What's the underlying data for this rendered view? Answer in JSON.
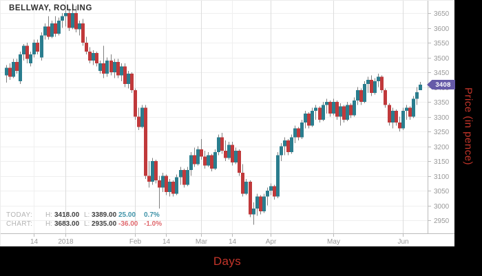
{
  "title": "BELLWAY, ROLLING",
  "axis_titles": {
    "x": "Days",
    "y": "Price (in pence)"
  },
  "price_badge": {
    "value": "3408",
    "color": "#655aa8"
  },
  "stats": {
    "rows": [
      {
        "label": "TODAY:",
        "h_label": "H:",
        "high": "3418.00",
        "l_label": "L:",
        "low": "3389.00",
        "change": "25.00",
        "change_pct": "0.7%",
        "direction": "up"
      },
      {
        "label": "CHART:",
        "h_label": "H:",
        "high": "3683.00",
        "l_label": "L:",
        "low": "2935.00",
        "change": "-36.00",
        "change_pct": "-1.0%",
        "direction": "down"
      }
    ]
  },
  "colors": {
    "up": "#2a7d8e",
    "down": "#c0393b",
    "wick": "#7f7f7f",
    "grid": "#efefef",
    "grid_month": "#dcdcdc",
    "axis": "#bbbbbb",
    "tick_label": "#999999",
    "accent_red": "#c5352a",
    "badge": "#655aa8"
  },
  "chart_data": {
    "type": "candlestick",
    "title": "BELLWAY, ROLLING",
    "xlabel": "Days",
    "ylabel": "Price (in pence)",
    "ylim": [
      2935,
      3683
    ],
    "last_price": 3408,
    "chart_high": 3683,
    "chart_low": 2935,
    "price_ticks": [
      3650,
      3600,
      3550,
      3500,
      3450,
      3400,
      3350,
      3300,
      3250,
      3200,
      3150,
      3100,
      3050,
      3000,
      2950
    ],
    "x_ticks": [
      {
        "label": "14",
        "i": 8,
        "month": false
      },
      {
        "label": "2018",
        "i": 17,
        "month": true
      },
      {
        "label": "Feb",
        "i": 37,
        "month": true
      },
      {
        "label": "14",
        "i": 46,
        "month": false
      },
      {
        "label": "Mar",
        "i": 56,
        "month": true
      },
      {
        "label": "14",
        "i": 65,
        "month": false
      },
      {
        "label": "Apr",
        "i": 76,
        "month": true
      },
      {
        "label": "May",
        "i": 94,
        "month": true
      },
      {
        "label": "Jun",
        "i": 114,
        "month": true
      }
    ],
    "ohlc_format": [
      "open",
      "high",
      "low",
      "close"
    ],
    "candles": [
      [
        3440,
        3475,
        3415,
        3465
      ],
      [
        3465,
        3480,
        3425,
        3435
      ],
      [
        3435,
        3495,
        3430,
        3485
      ],
      [
        3485,
        3495,
        3445,
        3455
      ],
      [
        3420,
        3520,
        3410,
        3510
      ],
      [
        3510,
        3545,
        3490,
        3540
      ],
      [
        3540,
        3550,
        3480,
        3495
      ],
      [
        3480,
        3520,
        3470,
        3510
      ],
      [
        3510,
        3560,
        3500,
        3550
      ],
      [
        3550,
        3560,
        3510,
        3520
      ],
      [
        3500,
        3585,
        3490,
        3575
      ],
      [
        3575,
        3615,
        3560,
        3605
      ],
      [
        3605,
        3640,
        3560,
        3570
      ],
      [
        3570,
        3625,
        3565,
        3615
      ],
      [
        3615,
        3640,
        3570,
        3580
      ],
      [
        3580,
        3635,
        3575,
        3625
      ],
      [
        3625,
        3650,
        3600,
        3640
      ],
      [
        3640,
        3660,
        3605,
        3650
      ],
      [
        3650,
        3665,
        3590,
        3600
      ],
      [
        3600,
        3683,
        3595,
        3650
      ],
      [
        3650,
        3675,
        3585,
        3595
      ],
      [
        3595,
        3625,
        3575,
        3615
      ],
      [
        3615,
        3630,
        3540,
        3550
      ],
      [
        3550,
        3570,
        3510,
        3520
      ],
      [
        3520,
        3535,
        3480,
        3490
      ],
      [
        3490,
        3525,
        3475,
        3515
      ],
      [
        3515,
        3520,
        3470,
        3480
      ],
      [
        3455,
        3490,
        3445,
        3480
      ],
      [
        3480,
        3540,
        3430,
        3445
      ],
      [
        3445,
        3500,
        3435,
        3490
      ],
      [
        3490,
        3510,
        3440,
        3450
      ],
      [
        3450,
        3495,
        3430,
        3485
      ],
      [
        3485,
        3495,
        3430,
        3440
      ],
      [
        3440,
        3480,
        3420,
        3470
      ],
      [
        3470,
        3480,
        3400,
        3410
      ],
      [
        3410,
        3455,
        3395,
        3445
      ],
      [
        3445,
        3450,
        3380,
        3390
      ],
      [
        3390,
        3395,
        3290,
        3300
      ],
      [
        3300,
        3330,
        3255,
        3265
      ],
      [
        3265,
        3340,
        3260,
        3330
      ],
      [
        3330,
        3340,
        3090,
        3100
      ],
      [
        3100,
        3150,
        3060,
        3080
      ],
      [
        3080,
        3160,
        3070,
        3150
      ],
      [
        3150,
        3155,
        3075,
        3085
      ],
      [
        3085,
        3100,
        2990,
        3060
      ],
      [
        3060,
        3110,
        3045,
        3100
      ],
      [
        3100,
        3105,
        3035,
        3045
      ],
      [
        3045,
        3090,
        3030,
        3080
      ],
      [
        3080,
        3085,
        3030,
        3040
      ],
      [
        3040,
        3105,
        3035,
        3095
      ],
      [
        3095,
        3130,
        3070,
        3120
      ],
      [
        3120,
        3125,
        3060,
        3070
      ],
      [
        3070,
        3130,
        3065,
        3120
      ],
      [
        3120,
        3180,
        3100,
        3170
      ],
      [
        3170,
        3195,
        3130,
        3140
      ],
      [
        3140,
        3200,
        3135,
        3190
      ],
      [
        3190,
        3225,
        3155,
        3165
      ],
      [
        3165,
        3185,
        3125,
        3135
      ],
      [
        3135,
        3180,
        3130,
        3170
      ],
      [
        3170,
        3175,
        3115,
        3125
      ],
      [
        3125,
        3190,
        3120,
        3180
      ],
      [
        3180,
        3240,
        3170,
        3230
      ],
      [
        3230,
        3245,
        3175,
        3185
      ],
      [
        3185,
        3220,
        3150,
        3160
      ],
      [
        3160,
        3215,
        3155,
        3205
      ],
      [
        3205,
        3215,
        3135,
        3145
      ],
      [
        3145,
        3195,
        3140,
        3185
      ],
      [
        3185,
        3190,
        3100,
        3110
      ],
      [
        3110,
        3140,
        3030,
        3040
      ],
      [
        3040,
        3090,
        3035,
        3080
      ],
      [
        3080,
        3085,
        2960,
        2970
      ],
      [
        2970,
        3010,
        2935,
        2990
      ],
      [
        2990,
        3040,
        2965,
        3030
      ],
      [
        3030,
        3035,
        2970,
        2980
      ],
      [
        2980,
        3040,
        2975,
        3030
      ],
      [
        3030,
        3060,
        3000,
        3050
      ],
      [
        3050,
        3075,
        3035,
        3065
      ],
      [
        3065,
        3070,
        3020,
        3030
      ],
      [
        3030,
        3180,
        3025,
        3170
      ],
      [
        3170,
        3210,
        3150,
        3200
      ],
      [
        3200,
        3230,
        3170,
        3220
      ],
      [
        3220,
        3225,
        3170,
        3180
      ],
      [
        3180,
        3240,
        3175,
        3230
      ],
      [
        3230,
        3270,
        3210,
        3260
      ],
      [
        3260,
        3265,
        3220,
        3230
      ],
      [
        3230,
        3290,
        3225,
        3280
      ],
      [
        3280,
        3320,
        3260,
        3310
      ],
      [
        3310,
        3315,
        3260,
        3270
      ],
      [
        3270,
        3330,
        3265,
        3320
      ],
      [
        3320,
        3340,
        3290,
        3330
      ],
      [
        3330,
        3335,
        3280,
        3290
      ],
      [
        3290,
        3350,
        3285,
        3340
      ],
      [
        3340,
        3360,
        3310,
        3350
      ],
      [
        3350,
        3355,
        3300,
        3310
      ],
      [
        3310,
        3360,
        3305,
        3350
      ],
      [
        3350,
        3355,
        3290,
        3300
      ],
      [
        3300,
        3345,
        3270,
        3335
      ],
      [
        3335,
        3340,
        3280,
        3290
      ],
      [
        3290,
        3350,
        3285,
        3340
      ],
      [
        3340,
        3345,
        3295,
        3305
      ],
      [
        3305,
        3365,
        3300,
        3355
      ],
      [
        3355,
        3400,
        3340,
        3390
      ],
      [
        3390,
        3395,
        3340,
        3350
      ],
      [
        3350,
        3420,
        3345,
        3410
      ],
      [
        3410,
        3435,
        3380,
        3425
      ],
      [
        3425,
        3440,
        3370,
        3380
      ],
      [
        3380,
        3430,
        3375,
        3420
      ],
      [
        3420,
        3445,
        3400,
        3435
      ],
      [
        3435,
        3440,
        3380,
        3390
      ],
      [
        3390,
        3395,
        3330,
        3340
      ],
      [
        3340,
        3345,
        3270,
        3280
      ],
      [
        3280,
        3330,
        3260,
        3320
      ],
      [
        3320,
        3325,
        3270,
        3280
      ],
      [
        3280,
        3300,
        3250,
        3260
      ],
      [
        3260,
        3330,
        3255,
        3320
      ],
      [
        3320,
        3340,
        3290,
        3330
      ],
      [
        3330,
        3335,
        3290,
        3300
      ],
      [
        3300,
        3370,
        3295,
        3360
      ],
      [
        3360,
        3400,
        3340,
        3383
      ],
      [
        3390,
        3418,
        3389,
        3408
      ]
    ]
  }
}
